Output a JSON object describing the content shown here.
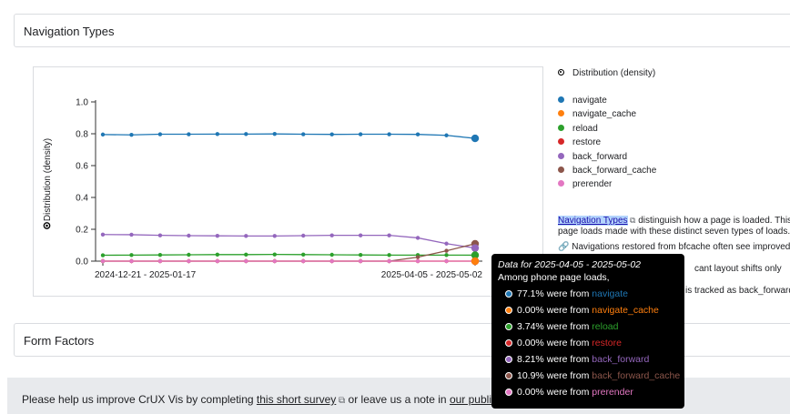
{
  "sections": {
    "nav_title": "Navigation Types",
    "ff_title": "Form Factors"
  },
  "legend": {
    "heading": "Distribution (density)",
    "items": [
      {
        "label": "navigate",
        "color": "#1f77b4"
      },
      {
        "label": "navigate_cache",
        "color": "#ff7f0e"
      },
      {
        "label": "reload",
        "color": "#2ca02c"
      },
      {
        "label": "restore",
        "color": "#d62728"
      },
      {
        "label": "back_forward",
        "color": "#9467bd"
      },
      {
        "label": "back_forward_cache",
        "color": "#8c564b"
      },
      {
        "label": "prerender",
        "color": "#e377c2"
      }
    ]
  },
  "description": {
    "link": "Navigation Types",
    "text1": " distinguish how a page is loaded. This",
    "text2": "page loads made with these distinct seven types of loads.",
    "text3": "Navigations restored from bfcache often see improved v",
    "text4": "cant layout shifts only occu",
    "text5": "is tracked as back_forward"
  },
  "survey": {
    "prefix": "Please help us improve CrUX Vis by completing ",
    "link1": "this short survey",
    "middle": " or leave us a note in ",
    "link2": "our public"
  },
  "tooltip": {
    "header": "Data for 2025-04-05 - 2025-05-02",
    "sub": "Among phone page loads,",
    "rows": [
      {
        "pct": "77.1% were from ",
        "name": "navigate",
        "color": "#1f77b4",
        "ring": "#1f77b4"
      },
      {
        "pct": "0.00% were from ",
        "name": "navigate_cache",
        "color": "#ff7f0e",
        "ring": "#ff7f0e"
      },
      {
        "pct": "3.74% were from ",
        "name": "reload",
        "color": "#2ca02c",
        "ring": "#2ca02c"
      },
      {
        "pct": "0.00% were from ",
        "name": "restore",
        "color": "#d62728",
        "ring": "#d62728"
      },
      {
        "pct": "8.21% were from ",
        "name": "back_forward",
        "color": "#9467bd",
        "ring": "#9467bd"
      },
      {
        "pct": "10.9% were from ",
        "name": "back_forward_cache",
        "color": "#8c564b",
        "ring": "#8c564b"
      },
      {
        "pct": "0.00% were from ",
        "name": "prerender",
        "color": "#e377c2",
        "ring": "#e377c2"
      }
    ]
  },
  "chart_data": {
    "type": "line",
    "ylabel": "Distribution (density)",
    "ylim": [
      0,
      1.0
    ],
    "yticks": [
      "0.0",
      "0.2",
      "0.4",
      "0.6",
      "0.8",
      "1.0"
    ],
    "x_first": "2024-12-21 - 2025-01-17",
    "x_last": "2025-04-05 - 2025-05-02",
    "grid": false,
    "series": [
      {
        "name": "navigate",
        "color": "#1f77b4",
        "values": [
          0.795,
          0.793,
          0.797,
          0.797,
          0.798,
          0.798,
          0.799,
          0.797,
          0.796,
          0.797,
          0.797,
          0.796,
          0.79,
          0.771
        ]
      },
      {
        "name": "navigate_cache",
        "color": "#ff7f0e",
        "values": [
          0,
          0,
          0,
          0,
          0,
          0,
          0,
          0,
          0,
          0,
          0,
          0,
          0,
          0
        ]
      },
      {
        "name": "reload",
        "color": "#2ca02c",
        "values": [
          0.037,
          0.038,
          0.039,
          0.04,
          0.041,
          0.041,
          0.042,
          0.041,
          0.04,
          0.039,
          0.038,
          0.038,
          0.038,
          0.0374
        ]
      },
      {
        "name": "restore",
        "color": "#d62728",
        "values": [
          0,
          0,
          0,
          0,
          0,
          0,
          0,
          0,
          0,
          0,
          0,
          0,
          0,
          0
        ]
      },
      {
        "name": "back_forward",
        "color": "#9467bd",
        "values": [
          0.167,
          0.166,
          0.162,
          0.16,
          0.159,
          0.158,
          0.158,
          0.16,
          0.162,
          0.162,
          0.162,
          0.146,
          0.11,
          0.082
        ]
      },
      {
        "name": "back_forward_cache",
        "color": "#8c564b",
        "values": [
          0,
          0,
          0,
          0,
          0,
          0,
          0,
          0,
          0,
          0,
          0,
          0.025,
          0.065,
          0.109
        ]
      },
      {
        "name": "prerender",
        "color": "#e377c2",
        "values": [
          0,
          0,
          0,
          0,
          0,
          0,
          0,
          0,
          0,
          0,
          0,
          0,
          0,
          0
        ]
      }
    ]
  }
}
